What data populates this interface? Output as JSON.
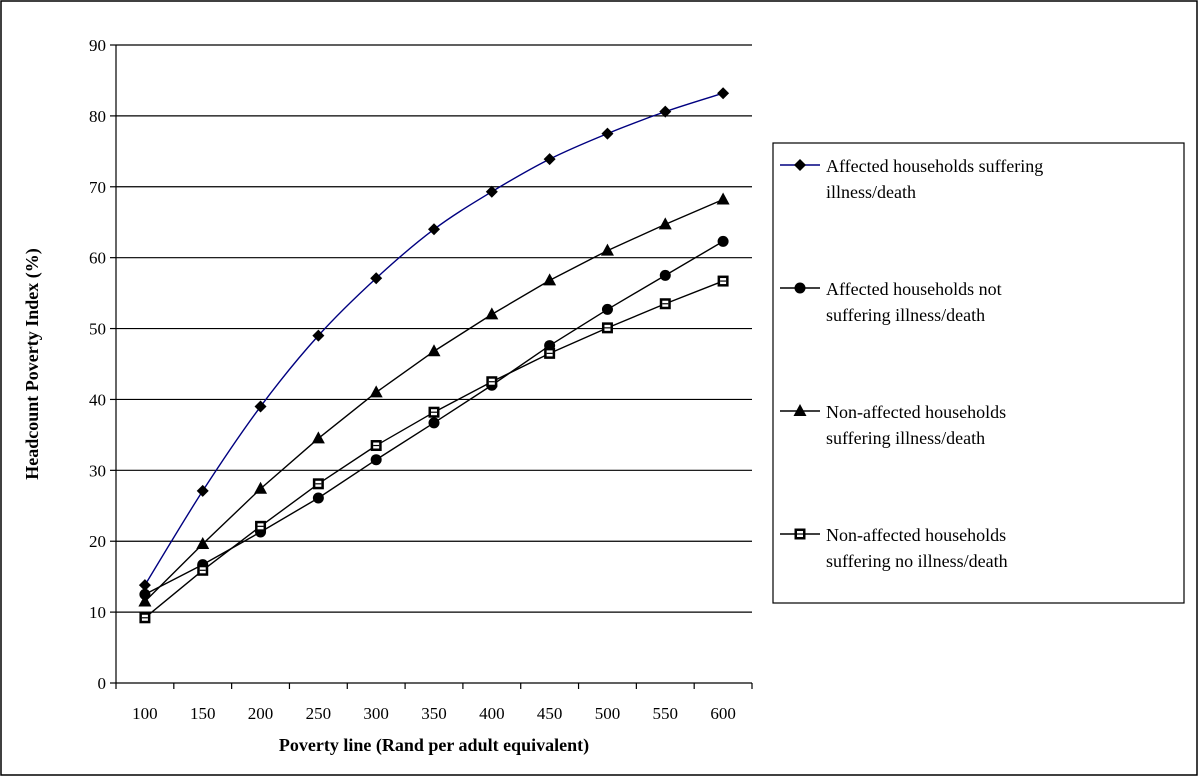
{
  "chart_data": {
    "type": "line",
    "title": "",
    "xlabel": "Poverty line (Rand per adult equivalent)",
    "ylabel": "Headcount Poverty Index (%)",
    "ylim": [
      0,
      90
    ],
    "yticks": [
      0,
      10,
      20,
      30,
      40,
      50,
      60,
      70,
      80,
      90
    ],
    "grid": "horizontal",
    "legend_position": "right",
    "categories": [
      "100",
      "150",
      "200",
      "250",
      "300",
      "350",
      "400",
      "450",
      "500",
      "550",
      "600"
    ],
    "series": [
      {
        "name": "Affected households suffering illness/death",
        "name_lines": [
          "Affected households suffering",
          "illness/death"
        ],
        "marker": "diamond",
        "color": "#000080",
        "values": [
          13.8,
          27.1,
          39.0,
          49.0,
          57.1,
          64.0,
          69.3,
          73.9,
          77.5,
          80.6,
          83.2
        ]
      },
      {
        "name": "Affected households not suffering illness/death",
        "name_lines": [
          "Affected households not",
          "suffering illness/death"
        ],
        "marker": "circle",
        "color": "#000000",
        "values": [
          12.5,
          16.7,
          21.3,
          26.1,
          31.5,
          36.7,
          42.0,
          47.6,
          52.7,
          57.5,
          62.3
        ]
      },
      {
        "name": "Non-affected households suffering illness/death",
        "name_lines": [
          "Non-affected households",
          "suffering illness/death"
        ],
        "marker": "triangle",
        "color": "#000000",
        "values": [
          11.5,
          19.6,
          27.4,
          34.5,
          41.0,
          46.8,
          52.0,
          56.8,
          61.0,
          64.7,
          68.2
        ]
      },
      {
        "name": "Non-affected households suffering no illness/death",
        "name_lines": [
          "Non-affected households",
          "suffering no illness/death"
        ],
        "marker": "square",
        "color": "#000000",
        "values": [
          9.2,
          15.9,
          22.1,
          28.1,
          33.5,
          38.2,
          42.5,
          46.5,
          50.1,
          53.5,
          56.7
        ]
      }
    ]
  }
}
